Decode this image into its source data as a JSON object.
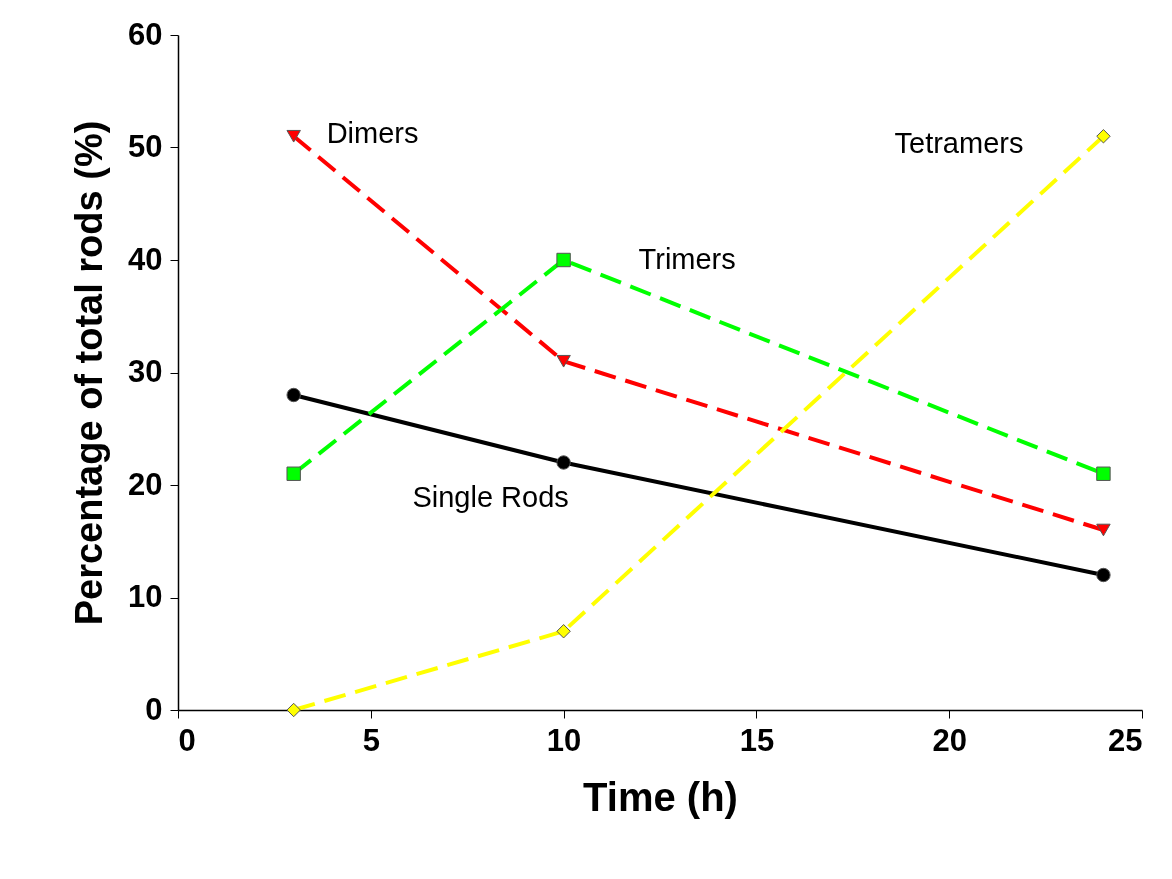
{
  "chart_data": {
    "type": "line",
    "xlabel": "Time (h)",
    "ylabel": "Percentage of total rods (%)",
    "xlim": [
      0,
      25
    ],
    "xticks": [
      0,
      5,
      10,
      15,
      20,
      25
    ],
    "ylim": [
      0,
      60
    ],
    "yticks": [
      0,
      10,
      20,
      30,
      40,
      50,
      60
    ],
    "x": [
      3,
      10,
      24
    ],
    "grid": false,
    "series": [
      {
        "name": "Single Rods",
        "color": "#000000",
        "values": [
          28,
          22,
          12
        ],
        "marker": "circle",
        "line_style": "solid"
      },
      {
        "name": "Dimers",
        "color": "#ff0000",
        "values": [
          51,
          31,
          16
        ],
        "marker": "triangle-down",
        "line_style": "dashed"
      },
      {
        "name": "Trimers",
        "color": "#00ff00",
        "values": [
          21,
          40,
          21
        ],
        "marker": "square",
        "line_style": "dashed"
      },
      {
        "name": "Tetramers",
        "color": "#ffff00",
        "values": [
          0,
          7,
          51
        ],
        "marker": "diamond",
        "line_style": "dashed"
      }
    ]
  }
}
